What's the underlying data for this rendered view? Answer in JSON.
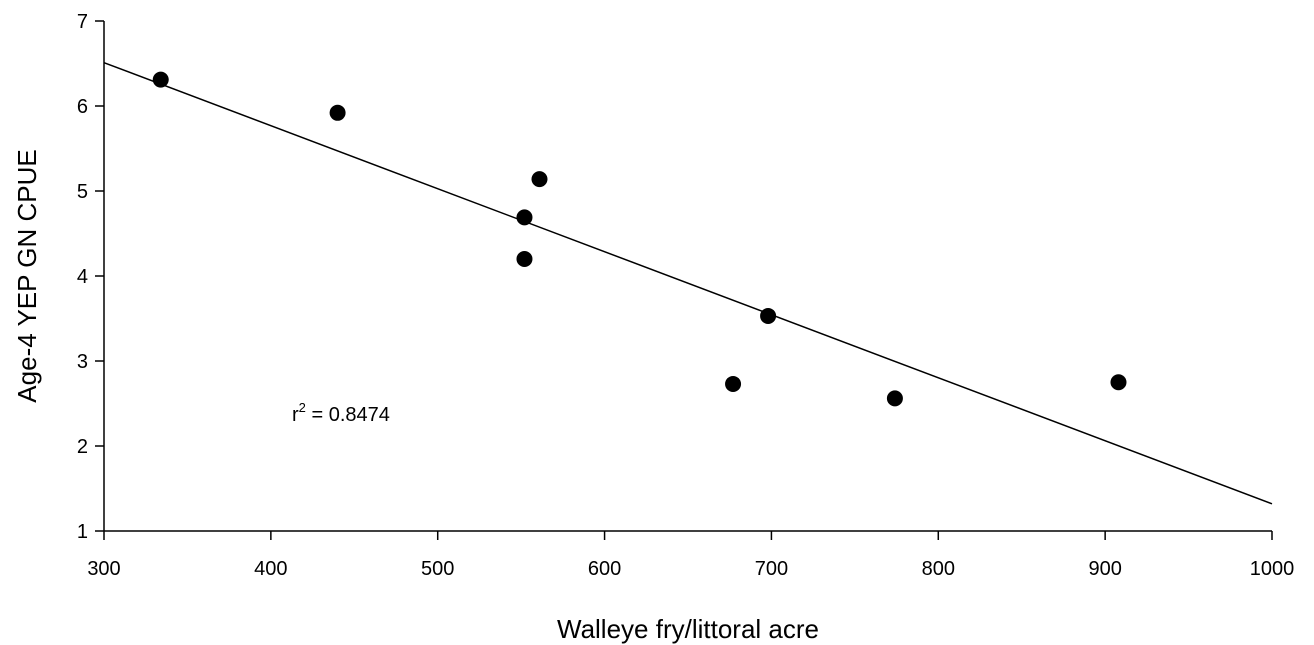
{
  "chart_data": {
    "type": "scatter",
    "x_label": "Walleye fry/littoral acre",
    "y_label": "Age-4 YEP GN CPUE",
    "x": [
      334,
      440,
      561,
      552,
      552,
      677,
      698,
      774,
      908
    ],
    "values": [
      6.31,
      5.92,
      5.14,
      4.69,
      4.2,
      2.73,
      3.53,
      2.56,
      2.75
    ],
    "color": "#000000",
    "fit_line": {
      "x": [
        300,
        1000
      ],
      "y": [
        6.51,
        1.32
      ]
    },
    "annotation": {
      "base": "r",
      "sup": "2",
      "text": " = 0.8474"
    },
    "xlim": [
      300,
      1000
    ],
    "xticks": [
      300,
      400,
      500,
      600,
      700,
      800,
      900,
      1000
    ],
    "ylim": [
      1,
      7
    ],
    "yticks": [
      1,
      2,
      3,
      4,
      5,
      6,
      7
    ],
    "grid": false
  }
}
